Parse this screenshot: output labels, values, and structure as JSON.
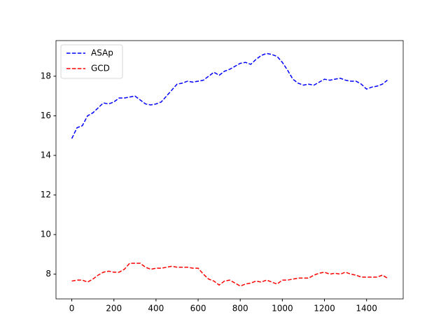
{
  "chart_data": {
    "type": "line",
    "x": [
      0,
      25,
      50,
      75,
      100,
      125,
      150,
      175,
      200,
      225,
      250,
      275,
      300,
      325,
      350,
      375,
      400,
      425,
      450,
      475,
      500,
      525,
      550,
      575,
      600,
      625,
      650,
      675,
      700,
      725,
      750,
      775,
      800,
      825,
      850,
      875,
      900,
      925,
      950,
      975,
      1000,
      1025,
      1050,
      1075,
      1100,
      1125,
      1150,
      1175,
      1200,
      1225,
      1250,
      1275,
      1300,
      1325,
      1350,
      1375,
      1400,
      1425,
      1450,
      1475,
      1499
    ],
    "series": [
      {
        "name": "ASAp",
        "color": "#0000ff",
        "values": [
          14.85,
          15.4,
          15.5,
          16.0,
          16.15,
          16.4,
          16.65,
          16.6,
          16.7,
          16.9,
          16.9,
          16.95,
          17.0,
          16.8,
          16.6,
          16.55,
          16.6,
          16.7,
          17.0,
          17.3,
          17.6,
          17.65,
          17.75,
          17.7,
          17.75,
          17.8,
          18.0,
          18.2,
          18.05,
          18.25,
          18.35,
          18.5,
          18.65,
          18.7,
          18.6,
          18.85,
          19.05,
          19.15,
          19.1,
          19.0,
          18.7,
          18.3,
          17.85,
          17.65,
          17.55,
          17.6,
          17.55,
          17.7,
          17.85,
          17.8,
          17.85,
          17.9,
          17.8,
          17.75,
          17.75,
          17.6,
          17.35,
          17.45,
          17.5,
          17.6,
          17.8
        ]
      },
      {
        "name": "GCD",
        "color": "#ff0000",
        "values": [
          7.65,
          7.7,
          7.7,
          7.6,
          7.75,
          7.95,
          8.1,
          8.15,
          8.1,
          8.1,
          8.25,
          8.55,
          8.55,
          8.55,
          8.35,
          8.25,
          8.3,
          8.3,
          8.35,
          8.4,
          8.35,
          8.35,
          8.35,
          8.3,
          8.3,
          8.0,
          7.75,
          7.65,
          7.45,
          7.65,
          7.7,
          7.55,
          7.4,
          7.5,
          7.55,
          7.65,
          7.6,
          7.7,
          7.6,
          7.5,
          7.7,
          7.7,
          7.75,
          7.8,
          7.8,
          7.8,
          7.95,
          8.05,
          8.1,
          8.0,
          8.05,
          8.0,
          8.1,
          8.0,
          7.95,
          7.85,
          7.85,
          7.85,
          7.85,
          7.95,
          7.8
        ]
      }
    ],
    "xlim": [
      -75,
      1574
    ],
    "ylim": [
      6.75,
      19.8
    ],
    "xticks": [
      0,
      200,
      400,
      600,
      800,
      1000,
      1200,
      1400
    ],
    "yticks": [
      8,
      10,
      12,
      14,
      16,
      18
    ],
    "legend": "upper left",
    "line_style": "dashed"
  }
}
